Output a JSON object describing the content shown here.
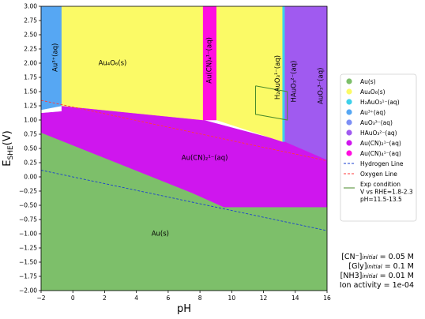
{
  "chart_data": {
    "type": "area",
    "xlabel": "pH",
    "ylabel": "E_SHE(V)",
    "xlim": [
      -2,
      16
    ],
    "ylim": [
      -2.0,
      3.0
    ],
    "xticks": [
      "−2",
      "0",
      "2",
      "4",
      "6",
      "8",
      "10",
      "12",
      "14",
      "16"
    ],
    "yticks": [
      "−2.00",
      "−1.75",
      "−1.50",
      "−1.25",
      "−1.00",
      "−0.75",
      "−0.50",
      "−0.25",
      "0.00",
      "0.25",
      "0.50",
      "0.75",
      "1.00",
      "1.25",
      "1.50",
      "1.75",
      "2.00",
      "2.25",
      "2.50",
      "2.75",
      "3.00"
    ],
    "colors": {
      "Au(s)": "#7dbf6a",
      "Au4O6(s)": "#fbfa66",
      "H2AuO3-(aq)": "#3fd0ea",
      "Au3+(aq)": "#56a7f3",
      "AuO3-3(aq)": "#7d8ff5",
      "HAuO3-2(aq)": "#a05af0",
      "Au(CN)2-(aq)": "#cf16ee",
      "Au(CN)4-(aq)": "#ff0ee0",
      "hydrogen": "#1a3fd0",
      "oxygen": "#ff3b3b",
      "exp": "#4a8a2a"
    },
    "regions": [
      {
        "name": "Au(s)",
        "label": "Au(s)",
        "label_at": [
          5.5,
          -1.0
        ],
        "rotate": false,
        "polygon": [
          [
            -2,
            0.78
          ],
          [
            7.5,
            -0.28
          ],
          [
            9.5,
            -0.53
          ],
          [
            16,
            -0.53
          ],
          [
            16,
            -2.0
          ],
          [
            -2,
            -2.0
          ]
        ]
      },
      {
        "name": "Au(CN)2-(aq)",
        "label": "Au(CN)₂¹⁻(aq)",
        "label_at": [
          8.3,
          0.33
        ],
        "rotate": false,
        "polygon": [
          [
            -2,
            1.12
          ],
          [
            -0.7,
            1.15
          ],
          [
            -0.7,
            1.25
          ],
          [
            8.2,
            1.0
          ],
          [
            8.2,
            1.0
          ],
          [
            13.3,
            0.62
          ],
          [
            16,
            0.62
          ],
          [
            16,
            -0.53
          ],
          [
            9.5,
            -0.53
          ],
          [
            7.5,
            -0.28
          ],
          [
            -2,
            0.78
          ]
        ]
      },
      {
        "name": "Au3+(aq)",
        "label": "Au³⁺(aq)",
        "label_at": [
          -1.1,
          2.1
        ],
        "rotate": true,
        "polygon": [
          [
            -2,
            3.0
          ],
          [
            -0.7,
            3.0
          ],
          [
            -0.7,
            1.25
          ],
          [
            -2,
            1.18
          ]
        ]
      },
      {
        "name": "Au4O6(s)",
        "label": "Au₄O₆(s)",
        "label_at": [
          2.5,
          2.0
        ],
        "rotate": false,
        "polygon": [
          [
            -0.7,
            3.0
          ],
          [
            8.2,
            3.0
          ],
          [
            8.2,
            1.0
          ],
          [
            -0.7,
            1.25
          ]
        ]
      },
      {
        "name": "Au(CN)4-(aq)",
        "label": "Au(CN)₄¹⁻(aq)",
        "label_at": [
          8.6,
          2.05
        ],
        "rotate": true,
        "polygon": [
          [
            8.2,
            3.0
          ],
          [
            9.05,
            3.0
          ],
          [
            9.05,
            1.0
          ],
          [
            8.2,
            1.0
          ]
        ]
      },
      {
        "name": "Au4O6(s)",
        "label": "",
        "label_at": [
          11,
          2.0
        ],
        "rotate": false,
        "polygon": [
          [
            9.05,
            3.0
          ],
          [
            13.2,
            3.0
          ],
          [
            13.2,
            0.62
          ],
          [
            9.05,
            1.0
          ]
        ]
      },
      {
        "name": "H2AuO3-(aq)",
        "label": "H₂AuO₃¹⁻(aq)",
        "label_at": [
          12.9,
          1.75
        ],
        "rotate": true,
        "polygon": [
          [
            13.2,
            3.0
          ],
          [
            13.35,
            3.0
          ],
          [
            13.35,
            0.62
          ],
          [
            13.2,
            0.62
          ]
        ]
      },
      {
        "name": "HAuO3-2(aq)",
        "label": "HAuO₃²⁻(aq)",
        "label_at": [
          13.9,
          1.68
        ],
        "rotate": true,
        "polygon": [
          [
            13.35,
            3.0
          ],
          [
            16,
            3.0
          ],
          [
            16,
            0.3
          ],
          [
            13.35,
            0.62
          ]
        ]
      },
      {
        "name": "AuO3-3(aq)",
        "label": "AuO₃³⁻(aq)",
        "label_at": [
          15.6,
          1.6
        ],
        "rotate": true,
        "polygon": []
      }
    ],
    "lines": [
      {
        "name": "Hydrogen Line",
        "color": "#1a3fd0",
        "dash": true,
        "points": [
          [
            -2,
            0.118
          ],
          [
            16,
            -0.946
          ]
        ]
      },
      {
        "name": "Oxygen Line",
        "color": "#ff3b3b",
        "dash": true,
        "points": [
          [
            -2,
            1.347
          ],
          [
            16,
            0.283
          ]
        ]
      }
    ],
    "exp_box": {
      "color": "#4a8a2a",
      "points": [
        [
          11.5,
          1.6
        ],
        [
          13.5,
          1.5
        ],
        [
          13.5,
          1.0
        ],
        [
          11.5,
          1.1
        ],
        [
          11.5,
          1.6
        ]
      ]
    },
    "legend": [
      {
        "label": "Au(s)",
        "kind": "dot",
        "color": "#7dbf6a"
      },
      {
        "label": "Au₄O₆(s)",
        "kind": "dot",
        "color": "#fbfa66"
      },
      {
        "label": "H₂AuO₃¹⁻(aq)",
        "kind": "dot",
        "color": "#3fd0ea"
      },
      {
        "label": "Au³⁺(aq)",
        "kind": "dot",
        "color": "#56a7f3"
      },
      {
        "label": "AuO₃³⁻(aq)",
        "kind": "dot",
        "color": "#7d8ff5"
      },
      {
        "label": "HAuO₃²⁻(aq)",
        "kind": "dot",
        "color": "#a05af0"
      },
      {
        "label": "Au(CN)₂¹⁻(aq)",
        "kind": "dot",
        "color": "#cf16ee"
      },
      {
        "label": "Au(CN)₄¹⁻(aq)",
        "kind": "dot",
        "color": "#ff0ee0"
      },
      {
        "label": "Hydrogen Line",
        "kind": "dash",
        "color": "#1a3fd0"
      },
      {
        "label": "Oxygen Line",
        "kind": "dash",
        "color": "#ff3b3b"
      },
      {
        "label": "Exp condition",
        "kind": "line",
        "color": "#4a8a2a"
      },
      {
        "label": "V vs RHE=1.8-2.3",
        "kind": "text",
        "color": ""
      },
      {
        "label": "pH=11.5-13.5",
        "kind": "text",
        "color": ""
      }
    ]
  },
  "conditions": [
    "[CN⁻]initial = 0.05 M",
    "[Gly]initial = 0.1 M",
    "[NH3]initial = 0.01 M",
    "Ion activity = 1e-04"
  ]
}
